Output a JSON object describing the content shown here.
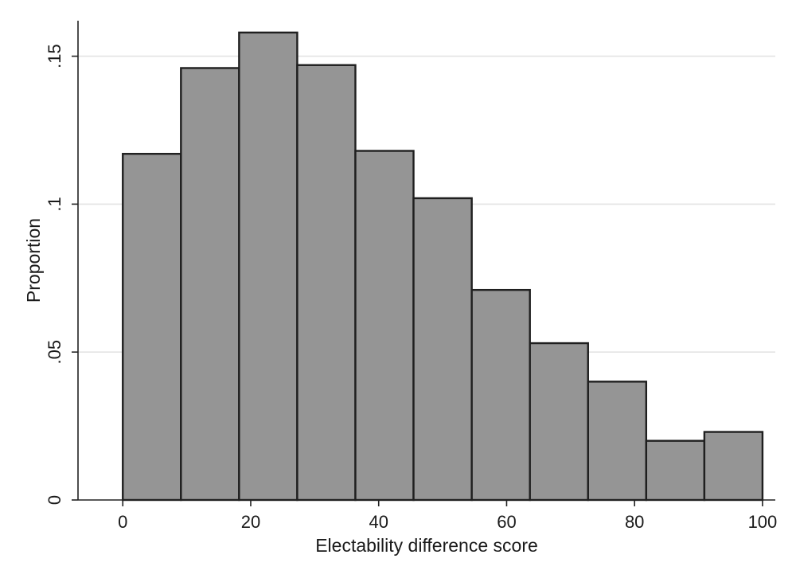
{
  "chart_data": {
    "type": "bar",
    "subtype": "histogram",
    "xlabel": "Electability difference score",
    "ylabel": "Proportion",
    "xlim": [
      -7,
      102
    ],
    "ylim": [
      0,
      0.162
    ],
    "xticks": [
      {
        "value": 0,
        "label": "0"
      },
      {
        "value": 20,
        "label": "20"
      },
      {
        "value": 40,
        "label": "40"
      },
      {
        "value": 60,
        "label": "60"
      },
      {
        "value": 80,
        "label": "80"
      },
      {
        "value": 100,
        "label": "100"
      }
    ],
    "yticks": [
      {
        "value": 0,
        "label": "0"
      },
      {
        "value": 0.05,
        "label": ".05"
      },
      {
        "value": 0.1,
        "label": ".1"
      },
      {
        "value": 0.15,
        "label": ".15"
      }
    ],
    "grid": "horizontal",
    "bin_edges": [
      0,
      9.09,
      18.18,
      27.27,
      36.36,
      45.45,
      54.55,
      63.64,
      72.73,
      81.82,
      90.91,
      100
    ],
    "values": [
      0.117,
      0.146,
      0.158,
      0.147,
      0.118,
      0.102,
      0.071,
      0.053,
      0.04,
      0.02,
      0.023
    ],
    "colors": {
      "bar_fill": "#959595",
      "bar_edge": "#1f1f1f",
      "grid": "#e3e3e3"
    }
  }
}
